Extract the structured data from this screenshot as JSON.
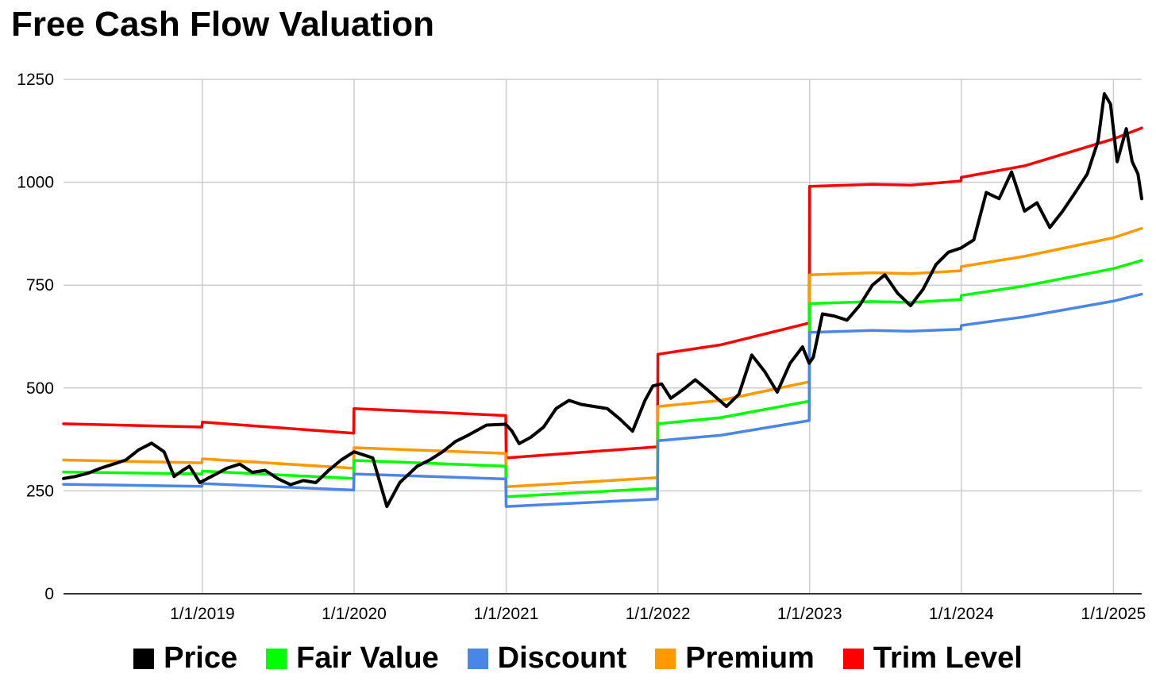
{
  "chart_data": {
    "type": "line",
    "title": "Free Cash Flow Valuation",
    "xlabel": "",
    "ylabel": "",
    "x_range": [
      "2018-02-01",
      "2025-03-10"
    ],
    "ylim": [
      0,
      1250
    ],
    "y_ticks": [
      0,
      250,
      500,
      750,
      1000,
      1250
    ],
    "x_ticks": [
      {
        "label": "1/1/2019",
        "date": "2019-01-01"
      },
      {
        "label": "1/1/2020",
        "date": "2020-01-01"
      },
      {
        "label": "1/1/2021",
        "date": "2021-01-01"
      },
      {
        "label": "1/1/2022",
        "date": "2022-01-01"
      },
      {
        "label": "1/1/2023",
        "date": "2023-01-01"
      },
      {
        "label": "1/1/2024",
        "date": "2024-01-01"
      },
      {
        "label": "1/1/2025",
        "date": "2025-01-01"
      }
    ],
    "grid": true,
    "legend_position": "bottom",
    "series": [
      {
        "name": "Trim Level",
        "color": "#ff0000",
        "points": [
          [
            "2018-02-01",
            413
          ],
          [
            "2018-12-31",
            405
          ],
          [
            "2019-01-01",
            417
          ],
          [
            "2019-12-31",
            390
          ],
          [
            "2020-01-01",
            450
          ],
          [
            "2020-12-31",
            433
          ],
          [
            "2021-01-01",
            330
          ],
          [
            "2021-12-31",
            357
          ],
          [
            "2022-01-01",
            582
          ],
          [
            "2022-06-01",
            605
          ],
          [
            "2022-12-31",
            658
          ],
          [
            "2023-01-01",
            990
          ],
          [
            "2023-06-01",
            995
          ],
          [
            "2023-09-01",
            993
          ],
          [
            "2023-12-31",
            1003
          ],
          [
            "2024-01-01",
            1012
          ],
          [
            "2024-06-01",
            1040
          ],
          [
            "2024-12-31",
            1105
          ],
          [
            "2025-03-10",
            1132
          ]
        ]
      },
      {
        "name": "Premium",
        "color": "#ff9900",
        "points": [
          [
            "2018-02-01",
            325
          ],
          [
            "2018-12-31",
            318
          ],
          [
            "2019-01-01",
            328
          ],
          [
            "2019-12-31",
            305
          ],
          [
            "2020-01-01",
            355
          ],
          [
            "2020-12-31",
            341
          ],
          [
            "2021-01-01",
            260
          ],
          [
            "2021-12-31",
            282
          ],
          [
            "2022-01-01",
            455
          ],
          [
            "2022-06-01",
            470
          ],
          [
            "2022-12-31",
            515
          ],
          [
            "2023-01-01",
            775
          ],
          [
            "2023-06-01",
            780
          ],
          [
            "2023-09-01",
            778
          ],
          [
            "2023-12-31",
            785
          ],
          [
            "2024-01-01",
            795
          ],
          [
            "2024-06-01",
            820
          ],
          [
            "2024-12-31",
            865
          ],
          [
            "2025-03-10",
            888
          ]
        ]
      },
      {
        "name": "Fair Value",
        "color": "#00ff00",
        "points": [
          [
            "2018-02-01",
            296
          ],
          [
            "2018-12-31",
            291
          ],
          [
            "2019-01-01",
            298
          ],
          [
            "2019-12-31",
            280
          ],
          [
            "2020-01-01",
            324
          ],
          [
            "2020-12-31",
            310
          ],
          [
            "2021-01-01",
            236
          ],
          [
            "2021-12-31",
            256
          ],
          [
            "2022-01-01",
            413
          ],
          [
            "2022-06-01",
            428
          ],
          [
            "2022-12-31",
            468
          ],
          [
            "2023-01-01",
            705
          ],
          [
            "2023-06-01",
            710
          ],
          [
            "2023-09-01",
            708
          ],
          [
            "2023-12-31",
            715
          ],
          [
            "2024-01-01",
            725
          ],
          [
            "2024-06-01",
            748
          ],
          [
            "2024-12-31",
            790
          ],
          [
            "2025-03-10",
            810
          ]
        ]
      },
      {
        "name": "Discount",
        "color": "#4a86e8",
        "points": [
          [
            "2018-02-01",
            266
          ],
          [
            "2018-12-31",
            261
          ],
          [
            "2019-01-01",
            268
          ],
          [
            "2019-12-31",
            252
          ],
          [
            "2020-01-01",
            291
          ],
          [
            "2020-12-31",
            279
          ],
          [
            "2021-01-01",
            212
          ],
          [
            "2021-12-31",
            230
          ],
          [
            "2022-01-01",
            372
          ],
          [
            "2022-06-01",
            385
          ],
          [
            "2022-12-31",
            421
          ],
          [
            "2023-01-01",
            635
          ],
          [
            "2023-06-01",
            640
          ],
          [
            "2023-09-01",
            638
          ],
          [
            "2023-12-31",
            643
          ],
          [
            "2024-01-01",
            652
          ],
          [
            "2024-06-01",
            673
          ],
          [
            "2024-12-31",
            711
          ],
          [
            "2025-03-10",
            728
          ]
        ]
      },
      {
        "name": "Price",
        "color": "#000000",
        "points": [
          [
            "2018-02-01",
            280
          ],
          [
            "2018-03-01",
            285
          ],
          [
            "2018-04-01",
            293
          ],
          [
            "2018-05-01",
            305
          ],
          [
            "2018-06-01",
            315
          ],
          [
            "2018-07-01",
            325
          ],
          [
            "2018-08-01",
            350
          ],
          [
            "2018-09-01",
            366
          ],
          [
            "2018-10-01",
            345
          ],
          [
            "2018-10-25",
            285
          ],
          [
            "2018-11-15",
            300
          ],
          [
            "2018-12-01",
            310
          ],
          [
            "2018-12-26",
            270
          ],
          [
            "2019-02-01",
            290
          ],
          [
            "2019-03-01",
            305
          ],
          [
            "2019-04-01",
            315
          ],
          [
            "2019-05-01",
            295
          ],
          [
            "2019-06-01",
            300
          ],
          [
            "2019-07-01",
            280
          ],
          [
            "2019-08-01",
            265
          ],
          [
            "2019-09-01",
            275
          ],
          [
            "2019-10-01",
            270
          ],
          [
            "2019-11-01",
            300
          ],
          [
            "2019-12-01",
            325
          ],
          [
            "2020-01-01",
            345
          ],
          [
            "2020-02-15",
            330
          ],
          [
            "2020-03-20",
            212
          ],
          [
            "2020-04-20",
            270
          ],
          [
            "2020-06-01",
            310
          ],
          [
            "2020-07-01",
            325
          ],
          [
            "2020-08-01",
            345
          ],
          [
            "2020-09-01",
            370
          ],
          [
            "2020-10-01",
            385
          ],
          [
            "2020-11-15",
            410
          ],
          [
            "2020-12-31",
            412
          ],
          [
            "2021-01-15",
            395
          ],
          [
            "2021-02-01",
            365
          ],
          [
            "2021-03-01",
            380
          ],
          [
            "2021-04-01",
            405
          ],
          [
            "2021-05-01",
            450
          ],
          [
            "2021-06-01",
            470
          ],
          [
            "2021-07-01",
            460
          ],
          [
            "2021-08-01",
            455
          ],
          [
            "2021-09-01",
            450
          ],
          [
            "2021-10-01",
            425
          ],
          [
            "2021-11-01",
            395
          ],
          [
            "2021-12-01",
            470
          ],
          [
            "2021-12-20",
            505
          ],
          [
            "2022-01-10",
            510
          ],
          [
            "2022-02-01",
            475
          ],
          [
            "2022-03-01",
            495
          ],
          [
            "2022-04-01",
            520
          ],
          [
            "2022-05-01",
            495
          ],
          [
            "2022-06-15",
            455
          ],
          [
            "2022-07-15",
            485
          ],
          [
            "2022-08-15",
            580
          ],
          [
            "2022-09-15",
            540
          ],
          [
            "2022-10-15",
            490
          ],
          [
            "2022-11-15",
            560
          ],
          [
            "2022-12-15",
            600
          ],
          [
            "2022-12-31",
            560
          ],
          [
            "2023-01-10",
            575
          ],
          [
            "2023-02-01",
            680
          ],
          [
            "2023-03-01",
            675
          ],
          [
            "2023-04-01",
            665
          ],
          [
            "2023-05-01",
            700
          ],
          [
            "2023-06-01",
            750
          ],
          [
            "2023-07-01",
            775
          ],
          [
            "2023-08-01",
            730
          ],
          [
            "2023-09-01",
            700
          ],
          [
            "2023-10-01",
            740
          ],
          [
            "2023-11-01",
            800
          ],
          [
            "2023-12-01",
            830
          ],
          [
            "2023-12-31",
            840
          ],
          [
            "2024-01-31",
            860
          ],
          [
            "2024-03-01",
            975
          ],
          [
            "2024-04-01",
            960
          ],
          [
            "2024-05-01",
            1025
          ],
          [
            "2024-06-01",
            930
          ],
          [
            "2024-07-01",
            950
          ],
          [
            "2024-08-01",
            890
          ],
          [
            "2024-09-01",
            930
          ],
          [
            "2024-10-01",
            975
          ],
          [
            "2024-10-30",
            1020
          ],
          [
            "2024-11-25",
            1100
          ],
          [
            "2024-12-10",
            1215
          ],
          [
            "2024-12-25",
            1190
          ],
          [
            "2025-01-10",
            1050
          ],
          [
            "2025-02-01",
            1130
          ],
          [
            "2025-02-15",
            1050
          ],
          [
            "2025-03-01",
            1020
          ],
          [
            "2025-03-10",
            960
          ]
        ]
      }
    ]
  }
}
